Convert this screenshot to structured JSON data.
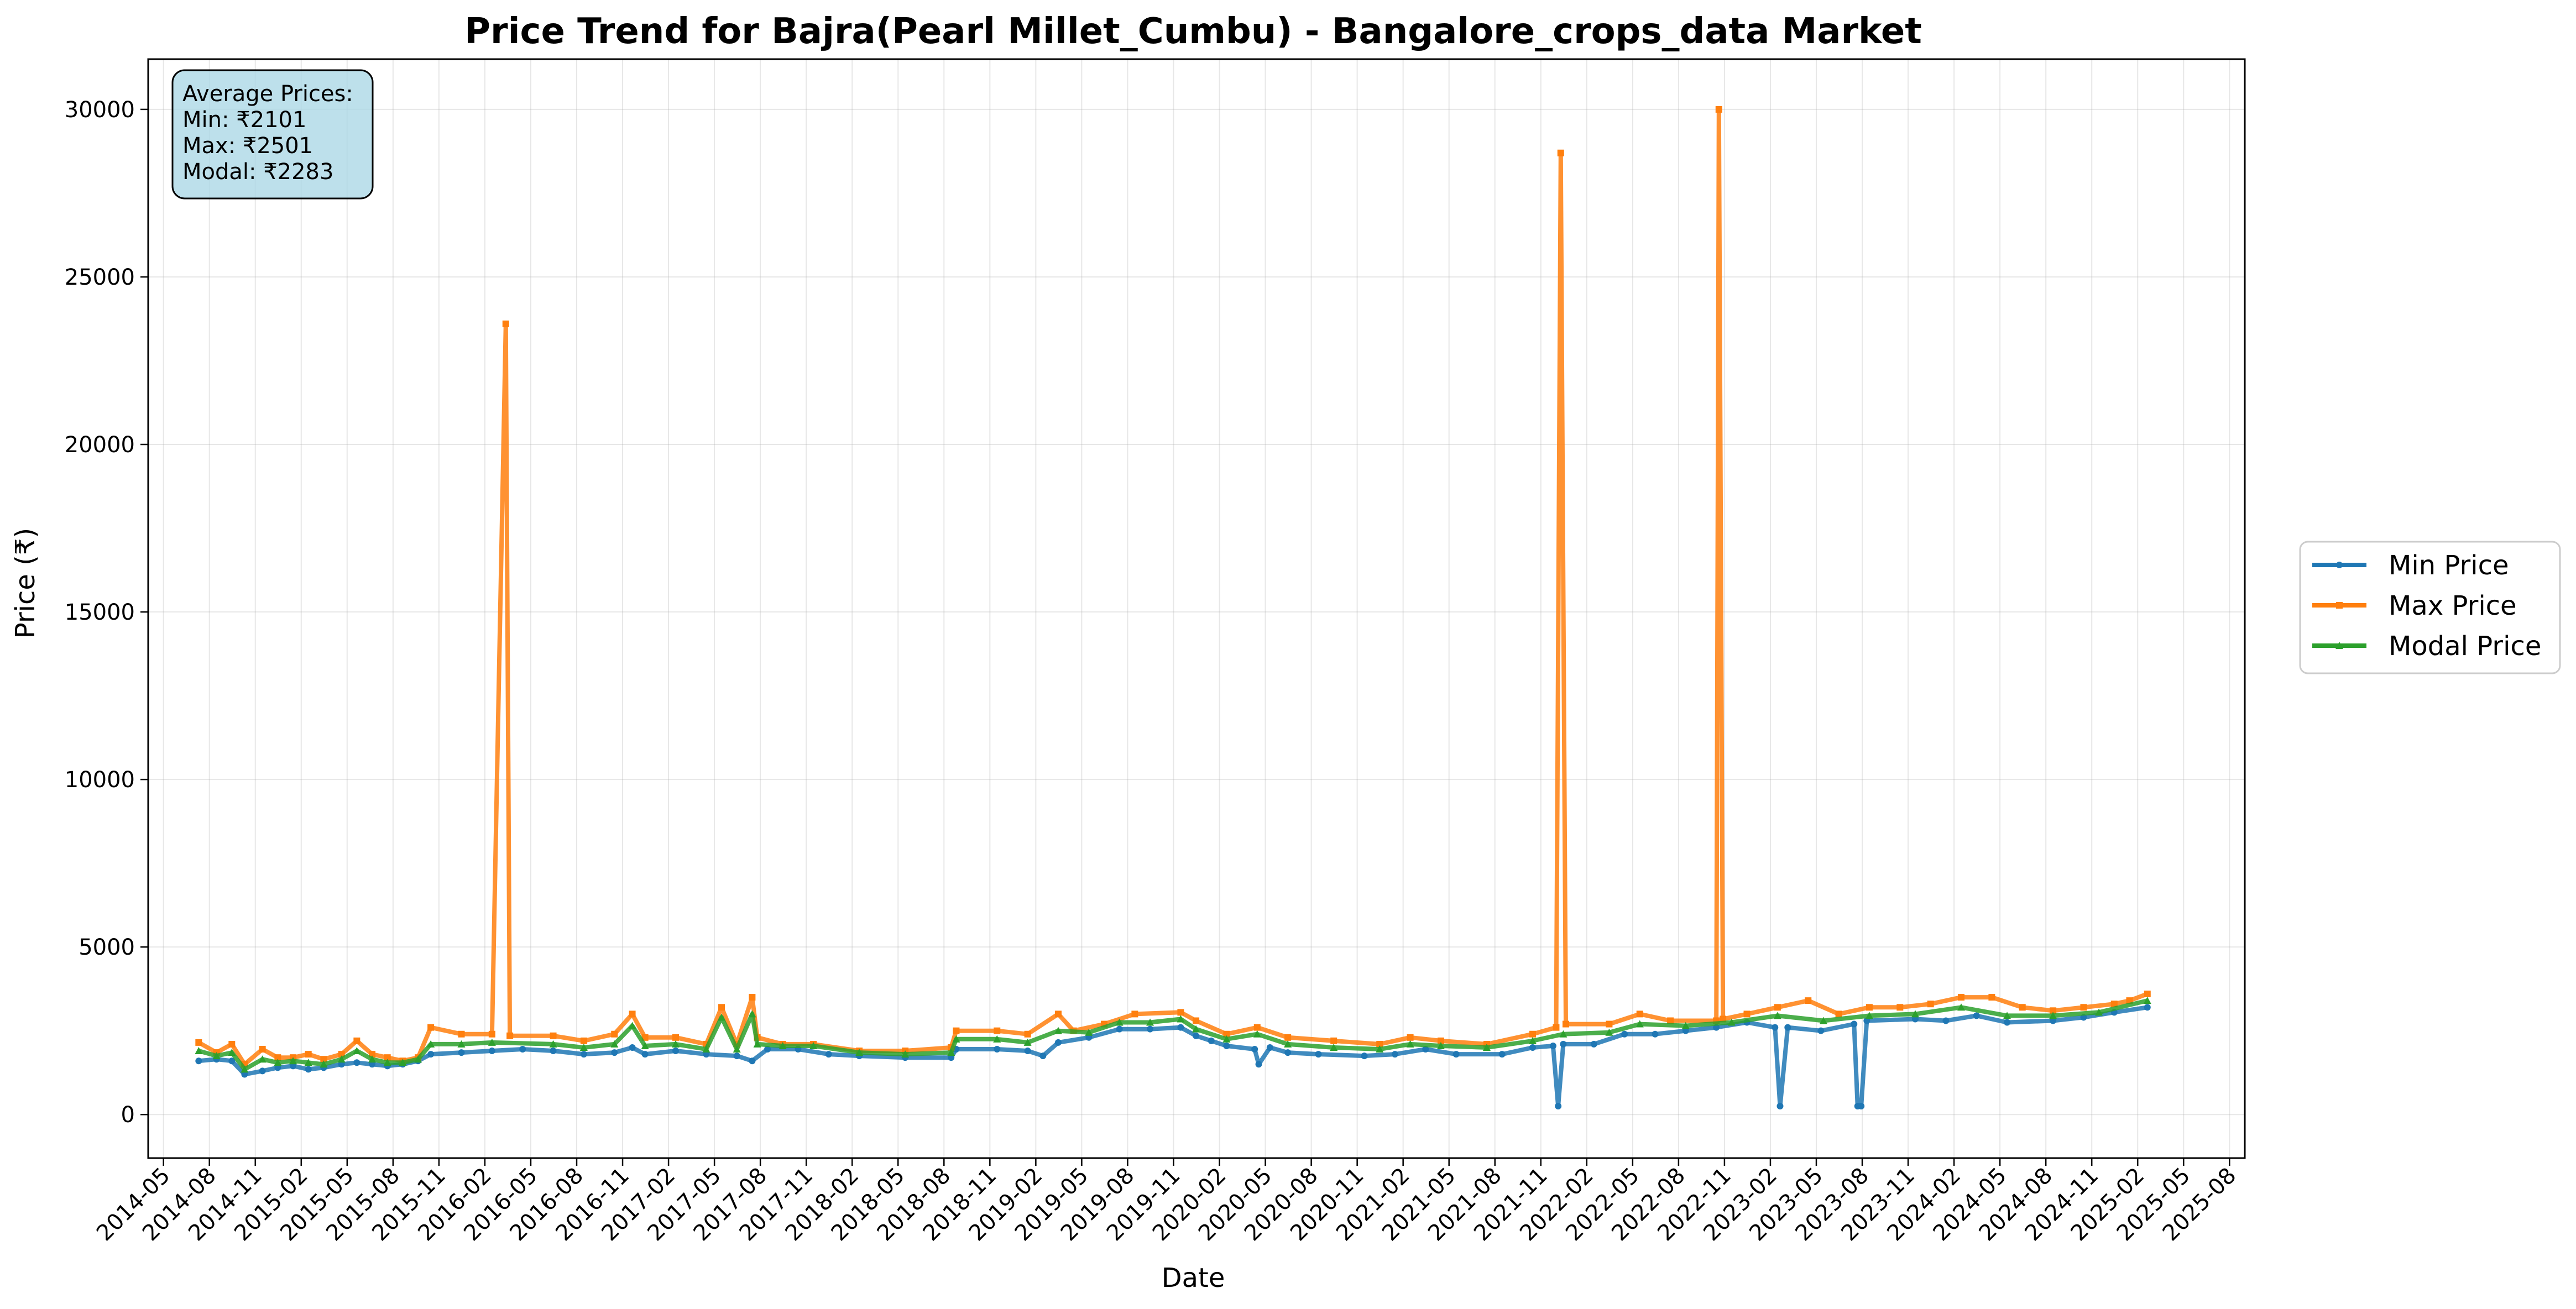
{
  "chart_data": {
    "type": "line",
    "title": "Price Trend for Bajra(Pearl Millet_Cumbu) - Bangalore_crops_data Market",
    "xlabel": "Date",
    "ylabel": "Price (₹)",
    "x_ticks": [
      "2014-05",
      "2014-08",
      "2014-11",
      "2015-02",
      "2015-05",
      "2015-08",
      "2015-11",
      "2016-02",
      "2016-05",
      "2016-08",
      "2016-11",
      "2017-02",
      "2017-05",
      "2017-08",
      "2017-11",
      "2018-02",
      "2018-05",
      "2018-08",
      "2018-11",
      "2019-02",
      "2019-05",
      "2019-08",
      "2019-11",
      "2020-02",
      "2020-05",
      "2020-08",
      "2020-11",
      "2021-02",
      "2021-05",
      "2021-08",
      "2021-11",
      "2022-02",
      "2022-05",
      "2022-08",
      "2022-11",
      "2023-02",
      "2023-05",
      "2023-08",
      "2023-11",
      "2024-02",
      "2024-05",
      "2024-08",
      "2024-11",
      "2025-02",
      "2025-05",
      "2025-08"
    ],
    "y_ticks": [
      0,
      5000,
      10000,
      15000,
      20000,
      25000,
      30000
    ],
    "xlim": [
      "2014-04",
      "2025-09"
    ],
    "ylim": [
      -1300,
      31500
    ],
    "grid": true,
    "legend_position": "outside-right",
    "series": [
      {
        "name": "Min Price",
        "color": "#1f77b4",
        "marker": "circle",
        "points": [
          [
            "2014-07-10",
            1600
          ],
          [
            "2014-08-15",
            1650
          ],
          [
            "2014-09-15",
            1600
          ],
          [
            "2014-10-10",
            1200
          ],
          [
            "2014-11-15",
            1300
          ],
          [
            "2014-12-15",
            1400
          ],
          [
            "2015-01-15",
            1450
          ],
          [
            "2015-02-15",
            1350
          ],
          [
            "2015-03-15",
            1400
          ],
          [
            "2015-04-20",
            1500
          ],
          [
            "2015-05-20",
            1550
          ],
          [
            "2015-06-20",
            1500
          ],
          [
            "2015-07-20",
            1450
          ],
          [
            "2015-08-20",
            1500
          ],
          [
            "2015-09-20",
            1600
          ],
          [
            "2015-10-15",
            1800
          ],
          [
            "2015-12-15",
            1850
          ],
          [
            "2016-02-15",
            1900
          ],
          [
            "2016-04-15",
            1950
          ],
          [
            "2016-06-15",
            1900
          ],
          [
            "2016-08-15",
            1800
          ],
          [
            "2016-10-15",
            1850
          ],
          [
            "2016-11-20",
            2000
          ],
          [
            "2016-12-15",
            1800
          ],
          [
            "2017-02-15",
            1900
          ],
          [
            "2017-04-15",
            1800
          ],
          [
            "2017-06-15",
            1750
          ],
          [
            "2017-07-15",
            1600
          ],
          [
            "2017-08-15",
            1950
          ],
          [
            "2017-10-15",
            1950
          ],
          [
            "2017-12-15",
            1800
          ],
          [
            "2018-02-15",
            1750
          ],
          [
            "2018-05-15",
            1700
          ],
          [
            "2018-08-15",
            1700
          ],
          [
            "2018-08-25",
            1950
          ],
          [
            "2018-11-15",
            1950
          ],
          [
            "2019-01-15",
            1900
          ],
          [
            "2019-02-15",
            1750
          ],
          [
            "2019-03-15",
            2150
          ],
          [
            "2019-05-15",
            2300
          ],
          [
            "2019-07-15",
            2550
          ],
          [
            "2019-09-15",
            2550
          ],
          [
            "2019-11-15",
            2600
          ],
          [
            "2019-12-15",
            2350
          ],
          [
            "2020-01-15",
            2200
          ],
          [
            "2020-02-15",
            2050
          ],
          [
            "2020-04-10",
            1950
          ],
          [
            "2020-04-18",
            1500
          ],
          [
            "2020-05-10",
            2000
          ],
          [
            "2020-06-15",
            1850
          ],
          [
            "2020-08-15",
            1800
          ],
          [
            "2020-11-15",
            1750
          ],
          [
            "2021-01-15",
            1800
          ],
          [
            "2021-03-15",
            1950
          ],
          [
            "2021-05-15",
            1800
          ],
          [
            "2021-08-15",
            1800
          ],
          [
            "2021-10-15",
            2000
          ],
          [
            "2021-11-25",
            2050
          ],
          [
            "2021-12-05",
            250
          ],
          [
            "2021-12-15",
            2100
          ],
          [
            "2022-02-15",
            2100
          ],
          [
            "2022-04-15",
            2400
          ],
          [
            "2022-06-15",
            2400
          ],
          [
            "2022-08-15",
            2500
          ],
          [
            "2022-10-15",
            2600
          ],
          [
            "2022-12-15",
            2750
          ],
          [
            "2023-02-10",
            2600
          ],
          [
            "2023-02-20",
            250
          ],
          [
            "2023-03-05",
            2600
          ],
          [
            "2023-05-10",
            2500
          ],
          [
            "2023-07-15",
            2700
          ],
          [
            "2023-07-22",
            250
          ],
          [
            "2023-07-29",
            250
          ],
          [
            "2023-08-10",
            2800
          ],
          [
            "2023-11-15",
            2850
          ],
          [
            "2024-01-15",
            2800
          ],
          [
            "2024-03-15",
            2950
          ],
          [
            "2024-05-15",
            2750
          ],
          [
            "2024-08-15",
            2800
          ],
          [
            "2024-10-15",
            2900
          ],
          [
            "2024-12-15",
            3050
          ],
          [
            "2025-02-20",
            3200
          ]
        ]
      },
      {
        "name": "Max Price",
        "color": "#ff7f0e",
        "marker": "square",
        "points": [
          [
            "2014-07-10",
            2150
          ],
          [
            "2014-08-15",
            1850
          ],
          [
            "2014-09-15",
            2100
          ],
          [
            "2014-10-10",
            1500
          ],
          [
            "2014-11-15",
            1950
          ],
          [
            "2014-12-15",
            1700
          ],
          [
            "2015-01-15",
            1700
          ],
          [
            "2015-02-15",
            1800
          ],
          [
            "2015-03-15",
            1650
          ],
          [
            "2015-04-20",
            1800
          ],
          [
            "2015-05-20",
            2200
          ],
          [
            "2015-06-20",
            1800
          ],
          [
            "2015-07-20",
            1700
          ],
          [
            "2015-08-20",
            1600
          ],
          [
            "2015-09-20",
            1700
          ],
          [
            "2015-10-15",
            2600
          ],
          [
            "2015-12-15",
            2400
          ],
          [
            "2016-02-15",
            2400
          ],
          [
            "2016-03-12",
            23600
          ],
          [
            "2016-03-20",
            2350
          ],
          [
            "2016-06-15",
            2350
          ],
          [
            "2016-08-15",
            2200
          ],
          [
            "2016-10-15",
            2400
          ],
          [
            "2016-11-20",
            3000
          ],
          [
            "2016-12-15",
            2300
          ],
          [
            "2017-02-15",
            2300
          ],
          [
            "2017-04-15",
            2100
          ],
          [
            "2017-05-15",
            3200
          ],
          [
            "2017-06-15",
            2100
          ],
          [
            "2017-07-15",
            3500
          ],
          [
            "2017-07-25",
            2300
          ],
          [
            "2017-09-15",
            2100
          ],
          [
            "2017-11-15",
            2100
          ],
          [
            "2018-02-15",
            1900
          ],
          [
            "2018-05-15",
            1900
          ],
          [
            "2018-08-15",
            2000
          ],
          [
            "2018-08-25",
            2500
          ],
          [
            "2018-11-15",
            2500
          ],
          [
            "2019-01-15",
            2400
          ],
          [
            "2019-03-15",
            3000
          ],
          [
            "2019-04-15",
            2500
          ],
          [
            "2019-06-15",
            2700
          ],
          [
            "2019-08-15",
            3000
          ],
          [
            "2019-11-15",
            3050
          ],
          [
            "2019-12-15",
            2800
          ],
          [
            "2020-02-15",
            2400
          ],
          [
            "2020-04-15",
            2600
          ],
          [
            "2020-06-15",
            2300
          ],
          [
            "2020-09-15",
            2200
          ],
          [
            "2020-12-15",
            2100
          ],
          [
            "2021-02-15",
            2300
          ],
          [
            "2021-04-15",
            2200
          ],
          [
            "2021-07-15",
            2100
          ],
          [
            "2021-10-15",
            2400
          ],
          [
            "2021-12-01",
            2600
          ],
          [
            "2021-12-10",
            28700
          ],
          [
            "2021-12-20",
            2700
          ],
          [
            "2022-03-15",
            2700
          ],
          [
            "2022-05-15",
            3000
          ],
          [
            "2022-07-15",
            2800
          ],
          [
            "2022-10-15",
            2800
          ],
          [
            "2022-10-20",
            30000
          ],
          [
            "2022-10-28",
            2850
          ],
          [
            "2022-12-15",
            3000
          ],
          [
            "2023-02-15",
            3200
          ],
          [
            "2023-04-15",
            3400
          ],
          [
            "2023-06-15",
            3000
          ],
          [
            "2023-08-15",
            3200
          ],
          [
            "2023-10-15",
            3200
          ],
          [
            "2023-12-15",
            3300
          ],
          [
            "2024-02-15",
            3500
          ],
          [
            "2024-04-15",
            3500
          ],
          [
            "2024-06-15",
            3200
          ],
          [
            "2024-08-15",
            3100
          ],
          [
            "2024-10-15",
            3200
          ],
          [
            "2024-12-15",
            3300
          ],
          [
            "2025-01-15",
            3400
          ],
          [
            "2025-02-20",
            3600
          ]
        ]
      },
      {
        "name": "Modal Price",
        "color": "#2ca02c",
        "marker": "triangle",
        "points": [
          [
            "2014-07-10",
            1900
          ],
          [
            "2014-08-15",
            1750
          ],
          [
            "2014-09-15",
            1850
          ],
          [
            "2014-10-10",
            1350
          ],
          [
            "2014-11-15",
            1650
          ],
          [
            "2014-12-15",
            1550
          ],
          [
            "2015-01-15",
            1600
          ],
          [
            "2015-02-15",
            1550
          ],
          [
            "2015-03-15",
            1500
          ],
          [
            "2015-04-20",
            1650
          ],
          [
            "2015-05-20",
            1900
          ],
          [
            "2015-06-20",
            1650
          ],
          [
            "2015-07-20",
            1550
          ],
          [
            "2015-08-20",
            1550
          ],
          [
            "2015-09-20",
            1650
          ],
          [
            "2015-10-15",
            2100
          ],
          [
            "2015-12-15",
            2100
          ],
          [
            "2016-02-15",
            2150
          ],
          [
            "2016-06-15",
            2100
          ],
          [
            "2016-08-15",
            2000
          ],
          [
            "2016-10-15",
            2100
          ],
          [
            "2016-11-20",
            2650
          ],
          [
            "2016-12-15",
            2050
          ],
          [
            "2017-02-15",
            2100
          ],
          [
            "2017-04-15",
            1950
          ],
          [
            "2017-05-15",
            2900
          ],
          [
            "2017-06-15",
            1950
          ],
          [
            "2017-07-15",
            3000
          ],
          [
            "2017-07-25",
            2100
          ],
          [
            "2017-09-15",
            2050
          ],
          [
            "2017-11-15",
            2050
          ],
          [
            "2018-02-15",
            1850
          ],
          [
            "2018-05-15",
            1800
          ],
          [
            "2018-08-15",
            1850
          ],
          [
            "2018-08-25",
            2250
          ],
          [
            "2018-11-15",
            2250
          ],
          [
            "2019-01-15",
            2150
          ],
          [
            "2019-03-15",
            2500
          ],
          [
            "2019-05-15",
            2450
          ],
          [
            "2019-07-15",
            2750
          ],
          [
            "2019-09-15",
            2750
          ],
          [
            "2019-11-15",
            2850
          ],
          [
            "2019-12-15",
            2550
          ],
          [
            "2020-02-15",
            2250
          ],
          [
            "2020-04-15",
            2400
          ],
          [
            "2020-06-15",
            2100
          ],
          [
            "2020-09-15",
            2000
          ],
          [
            "2020-12-15",
            1950
          ],
          [
            "2021-02-15",
            2100
          ],
          [
            "2021-04-15",
            2050
          ],
          [
            "2021-07-15",
            2000
          ],
          [
            "2021-10-15",
            2200
          ],
          [
            "2021-12-15",
            2400
          ],
          [
            "2022-03-15",
            2450
          ],
          [
            "2022-05-15",
            2700
          ],
          [
            "2022-08-15",
            2650
          ],
          [
            "2022-11-15",
            2750
          ],
          [
            "2023-02-15",
            2950
          ],
          [
            "2023-05-15",
            2800
          ],
          [
            "2023-08-15",
            2950
          ],
          [
            "2023-11-15",
            3000
          ],
          [
            "2024-02-15",
            3200
          ],
          [
            "2024-05-15",
            2950
          ],
          [
            "2024-08-15",
            2950
          ],
          [
            "2024-11-15",
            3050
          ],
          [
            "2025-02-20",
            3400
          ]
        ]
      }
    ],
    "stats_box": {
      "lines": [
        "Average Prices:",
        "Min: ₹2101",
        "Max: ₹2501",
        "Modal: ₹2283"
      ],
      "background": "#add8e6"
    }
  }
}
